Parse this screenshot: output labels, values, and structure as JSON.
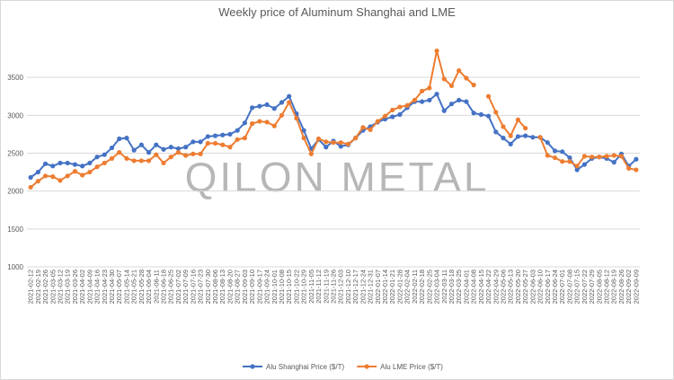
{
  "chart_data": {
    "type": "line",
    "title": "Weekly price of Aluminum Shanghai and LME",
    "annotation": "QILON METAL",
    "categories": [
      "2021-02-12",
      "2021-02-19",
      "2021-02-26",
      "2021-03-05",
      "2021-03-12",
      "2021-03-19",
      "2021-03-26",
      "2021-04-02",
      "2021-04-09",
      "2021-04-16",
      "2021-04-23",
      "2021-04-30",
      "2021-05-07",
      "2021-05-14",
      "2021-05-21",
      "2021-05-28",
      "2021-06-04",
      "2021-06-11",
      "2021-06-18",
      "2021-06-25",
      "2021-07-02",
      "2021-07-09",
      "2021-07-16",
      "2021-07-23",
      "2021-07-30",
      "2021-08-06",
      "2021-08-13",
      "2021-08-20",
      "2021-08-27",
      "2021-09-03",
      "2021-09-10",
      "2021-09-17",
      "2021-09-24",
      "2021-10-01",
      "2021-10-08",
      "2021-10-15",
      "2021-10-22",
      "2021-10-29",
      "2021-11-05",
      "2021-11-12",
      "2021-11-19",
      "2021-11-26",
      "2021-12-03",
      "2021-12-10",
      "2021-12-17",
      "2021-12-24",
      "2021-12-31",
      "2022-01-07",
      "2022-01-14",
      "2022-01-21",
      "2022-01-28",
      "2022-02-04",
      "2022-02-11",
      "2022-02-18",
      "2022-02-25",
      "2022-03-04",
      "2022-03-11",
      "2022-03-18",
      "2022-03-25",
      "2022-04-01",
      "2022-04-08",
      "2022-04-15",
      "2022-04-22",
      "2022-04-29",
      "2022-05-06",
      "2022-05-13",
      "2022-05-20",
      "2022-05-27",
      "2022-06-03",
      "2022-06-10",
      "2022-06-17",
      "2022-06-24",
      "2022-07-01",
      "2022-07-08",
      "2022-07-15",
      "2022-07-22",
      "2022-07-29",
      "2022-08-05",
      "2022-08-12",
      "2022-08-19",
      "2022-08-26",
      "2022-09-02",
      "2022-09-09"
    ],
    "series": [
      {
        "name": "Alu Shanghai Price ($/T)",
        "color": "#4472c4",
        "values": [
          2180,
          2250,
          2360,
          2330,
          2370,
          2370,
          2350,
          2330,
          2370,
          2450,
          2480,
          2570,
          2690,
          2700,
          2540,
          2610,
          2510,
          2610,
          2550,
          2580,
          2560,
          2580,
          2650,
          2650,
          2720,
          2730,
          2740,
          2750,
          2800,
          2900,
          3100,
          3120,
          3140,
          3090,
          3170,
          3250,
          3020,
          2800,
          2560,
          2680,
          2580,
          2660,
          2590,
          2610,
          2700,
          2800,
          2850,
          2910,
          2950,
          2980,
          3010,
          3100,
          3180,
          3180,
          3200,
          3280,
          3060,
          3150,
          3200,
          3180,
          3030,
          3010,
          2990,
          2780,
          2700,
          2620,
          2720,
          2730,
          2710,
          2710,
          2640,
          2530,
          2520,
          2440,
          2280,
          2350,
          2430,
          2450,
          2430,
          2380,
          2490,
          2330,
          2420
        ]
      },
      {
        "name": "Alu LME Price ($/T)",
        "color": "#ed7d31",
        "values": [
          2050,
          2130,
          2200,
          2190,
          2140,
          2200,
          2260,
          2210,
          2250,
          2320,
          2370,
          2430,
          2510,
          2430,
          2400,
          2400,
          2400,
          2480,
          2370,
          2450,
          2510,
          2470,
          2490,
          2490,
          2630,
          2630,
          2610,
          2580,
          2680,
          2700,
          2890,
          2920,
          2910,
          2860,
          3000,
          3170,
          2960,
          2700,
          2490,
          2690,
          2650,
          2640,
          2640,
          2620,
          2700,
          2840,
          2810,
          2920,
          2990,
          3070,
          3110,
          3130,
          3200,
          3320,
          3360,
          3850,
          3480,
          3390,
          3590,
          3490,
          3400,
          null,
          3250,
          3040,
          2850,
          2730,
          2940,
          2830,
          null,
          2710,
          2470,
          2440,
          2390,
          2390,
          2330,
          2460,
          2450,
          2450,
          2460,
          2470,
          2460,
          2300,
          2280
        ]
      }
    ],
    "ylim": [
      1000,
      4000
    ],
    "yticks": [
      1000,
      1500,
      2000,
      2500,
      3000,
      3500
    ],
    "grid": true,
    "legend": "bottom"
  }
}
